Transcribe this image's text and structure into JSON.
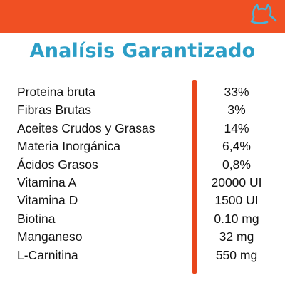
{
  "header": {
    "logo_icon": "cat-outline-icon",
    "bar_color": "#f05023",
    "logo_color": "#4ab3d8"
  },
  "title": "Analísis Garantizado",
  "title_color": "#2c9ec6",
  "divider_color": "#e8461b",
  "nutrients": [
    {
      "name": "Proteina bruta",
      "value": "33%"
    },
    {
      "name": "Fibras Brutas",
      "value": "3%"
    },
    {
      "name": "Aceites Crudos y Grasas",
      "value": "14%"
    },
    {
      "name": "Materia Inorgánica",
      "value": "6,4%"
    },
    {
      "name": "Ácidos Grasos",
      "value": "0,8%"
    },
    {
      "name": "Vitamina A",
      "value": "20000 UI"
    },
    {
      "name": "Vitamina D",
      "value": "1500 UI"
    },
    {
      "name": "Biotina",
      "value": "0.10 mg"
    },
    {
      "name": "Manganeso",
      "value": "32 mg"
    },
    {
      "name": "L-Carnitina",
      "value": "550 mg"
    }
  ]
}
